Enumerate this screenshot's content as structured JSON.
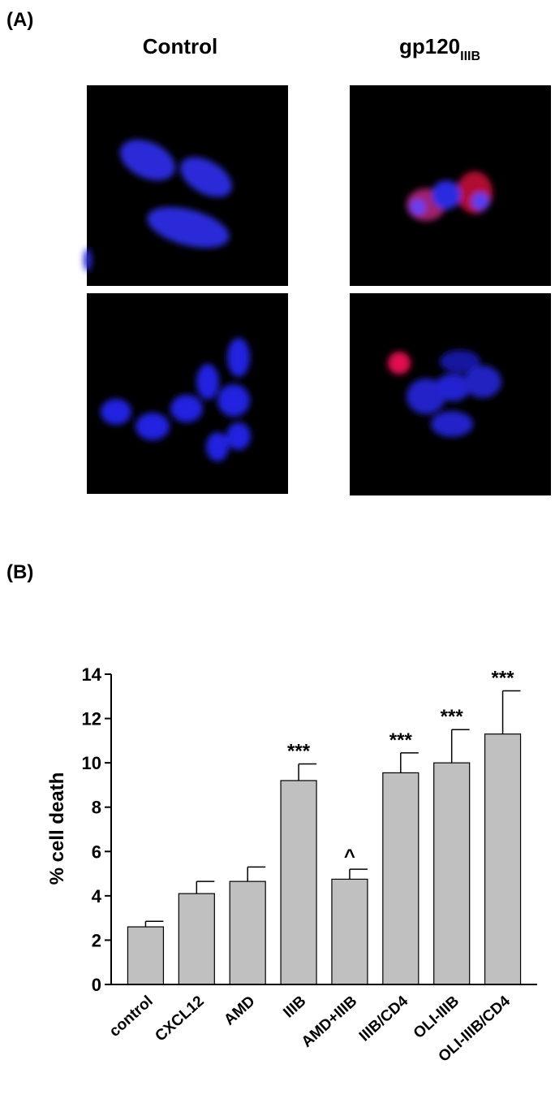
{
  "panel_a": {
    "label": "(A)",
    "columns": [
      {
        "label": "Control"
      },
      {
        "label": "gp120",
        "subscript": "IIIB"
      }
    ]
  },
  "panel_b_label": "(B)",
  "chart_data": {
    "type": "bar",
    "categories": [
      "control",
      "CXCL12",
      "AMD",
      "IIIB",
      "AMD+IIIB",
      "IIIB/CD4",
      "OLI-IIIB",
      "OLI-IIIB/CD4"
    ],
    "values": [
      2.6,
      4.1,
      4.65,
      9.2,
      4.75,
      9.55,
      10.0,
      11.3
    ],
    "errors": [
      0.25,
      0.55,
      0.65,
      0.75,
      0.45,
      0.9,
      1.5,
      1.95
    ],
    "annotations": [
      null,
      null,
      null,
      "***",
      "^",
      "***",
      "***",
      "***"
    ],
    "color": "#c0c0c0",
    "y_label": "% cell death",
    "ylim": [
      0,
      14
    ],
    "yticks": [
      0,
      2,
      4,
      6,
      8,
      10,
      12,
      14
    ]
  }
}
